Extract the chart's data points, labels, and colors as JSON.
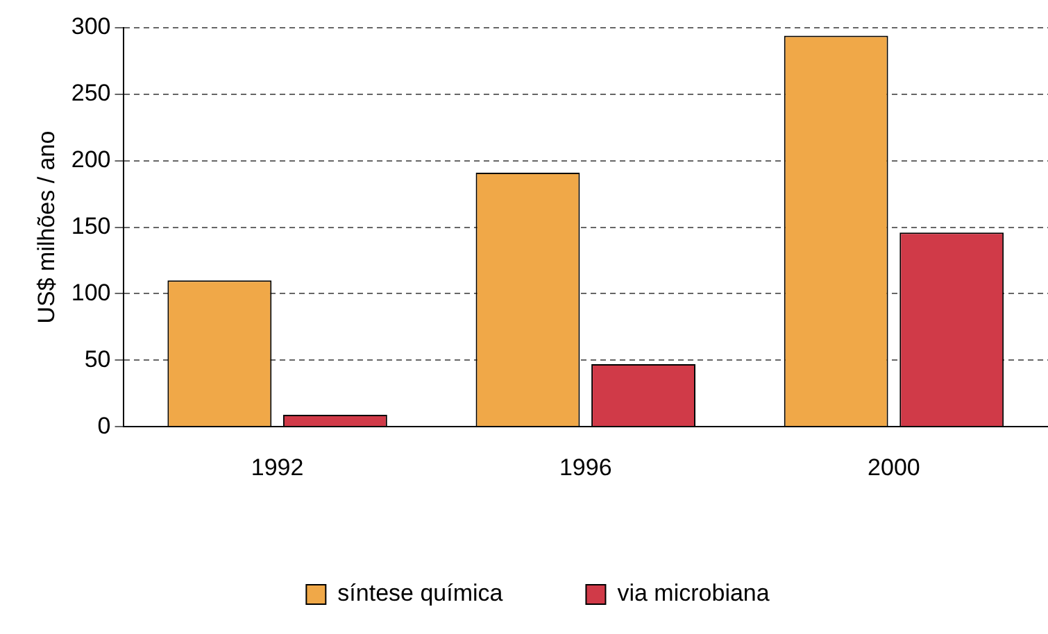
{
  "chart_data": {
    "type": "bar",
    "ylabel": "US$ milhões / ano",
    "categories": [
      "1992",
      "1996",
      "2000"
    ],
    "series": [
      {
        "name": "síntese química",
        "color": "#f0a848",
        "values": [
          110,
          191,
          294
        ]
      },
      {
        "name": "via microbiana",
        "color": "#d03a48",
        "values": [
          9,
          47,
          146
        ]
      }
    ],
    "ylim": [
      0,
      300
    ],
    "yticks": [
      0,
      50,
      100,
      150,
      200,
      250,
      300
    ],
    "grid": "y",
    "legend": "bottom"
  }
}
